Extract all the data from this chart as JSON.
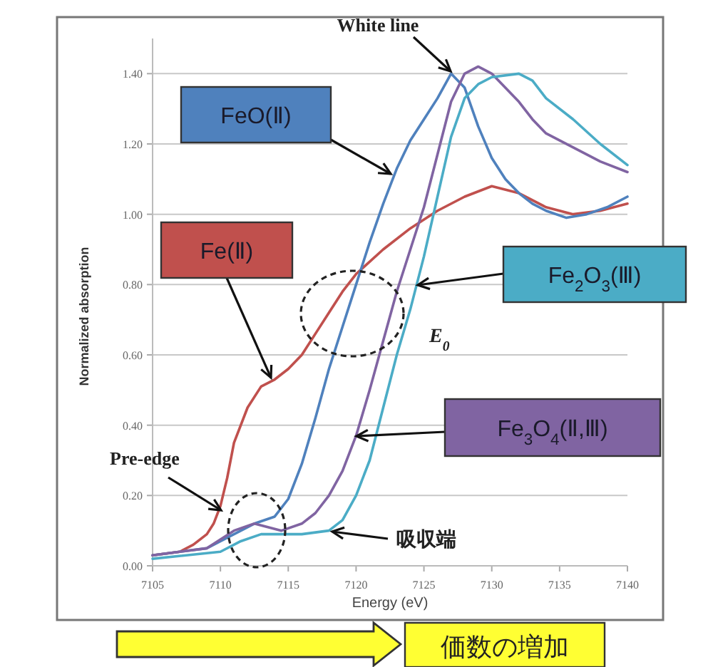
{
  "chart_data": {
    "type": "line",
    "xlabel": "Energy (eV)",
    "ylabel": "Normalized absorption",
    "xlim": [
      7105,
      7140
    ],
    "xticks": [
      7105,
      7110,
      7115,
      7120,
      7125,
      7130,
      7135,
      7140
    ],
    "ylim": [
      0,
      1.5
    ],
    "yticks": [
      {
        "value": 0,
        "label": "0.00"
      },
      {
        "value": 0.2,
        "label": "0.20"
      },
      {
        "value": 0.4,
        "label": "0.40"
      },
      {
        "value": 0.6,
        "label": "0.60"
      },
      {
        "value": 0.8,
        "label": "0.80"
      },
      {
        "value": 1.0,
        "label": "1.00"
      },
      {
        "value": 1.2,
        "label": "1.20"
      },
      {
        "value": 1.4,
        "label": "1.40"
      }
    ],
    "grid": "y",
    "marker": "none",
    "line_style": "solid",
    "series": [
      {
        "name": "Fe(Ⅱ)",
        "color": "#c0504d",
        "x": [
          7105,
          7107,
          7108,
          7109,
          7109.5,
          7110,
          7110.5,
          7111,
          7112,
          7113,
          7114,
          7115,
          7116,
          7117,
          7118,
          7119,
          7120,
          7122,
          7124,
          7126,
          7128,
          7130,
          7132,
          7134,
          7136,
          7138,
          7140
        ],
        "values": [
          0.03,
          0.04,
          0.06,
          0.09,
          0.12,
          0.17,
          0.25,
          0.35,
          0.45,
          0.51,
          0.53,
          0.56,
          0.6,
          0.66,
          0.72,
          0.78,
          0.83,
          0.9,
          0.96,
          1.01,
          1.05,
          1.08,
          1.06,
          1.02,
          1.0,
          1.01,
          1.03
        ]
      },
      {
        "name": "FeO(Ⅱ)",
        "color": "#4f81bd",
        "x": [
          7105,
          7109,
          7111,
          7112.5,
          7114,
          7115,
          7116,
          7117,
          7118,
          7119,
          7120,
          7121,
          7122,
          7123,
          7124,
          7125,
          7126,
          7127,
          7128,
          7129,
          7130,
          7131,
          7132,
          7133,
          7134,
          7135.5,
          7137,
          7138.5,
          7140
        ],
        "values": [
          0.03,
          0.05,
          0.09,
          0.12,
          0.14,
          0.19,
          0.29,
          0.42,
          0.56,
          0.68,
          0.8,
          0.92,
          1.03,
          1.13,
          1.21,
          1.27,
          1.33,
          1.4,
          1.36,
          1.25,
          1.16,
          1.1,
          1.06,
          1.03,
          1.01,
          0.99,
          1.0,
          1.02,
          1.05
        ]
      },
      {
        "name": "Fe$_{3}$O$_{4}$(Ⅱ,Ⅲ)",
        "color": "#8064a2",
        "x": [
          7105,
          7109,
          7111,
          7112.5,
          7113.5,
          7114.5,
          7116,
          7117,
          7118,
          7119,
          7120,
          7121,
          7122,
          7123,
          7124,
          7125,
          7126,
          7127,
          7128,
          7129,
          7130,
          7131,
          7132,
          7133,
          7134,
          7136,
          7138,
          7140
        ],
        "values": [
          0.03,
          0.05,
          0.1,
          0.12,
          0.11,
          0.1,
          0.12,
          0.15,
          0.2,
          0.27,
          0.37,
          0.5,
          0.64,
          0.78,
          0.9,
          1.02,
          1.17,
          1.32,
          1.4,
          1.42,
          1.4,
          1.36,
          1.32,
          1.27,
          1.23,
          1.19,
          1.15,
          1.12
        ]
      },
      {
        "name": "Fe$_{2}$O$_{3}$(Ⅲ)",
        "color": "#4bacc6",
        "x": [
          7105,
          7110,
          7111.5,
          7113,
          7114.5,
          7116,
          7118,
          7119,
          7120,
          7121,
          7122,
          7123,
          7124,
          7125,
          7126,
          7127,
          7128,
          7129,
          7130,
          7132,
          7133,
          7134,
          7136,
          7138,
          7140
        ],
        "values": [
          0.02,
          0.04,
          0.07,
          0.09,
          0.09,
          0.09,
          0.1,
          0.13,
          0.2,
          0.3,
          0.45,
          0.6,
          0.73,
          0.88,
          1.05,
          1.22,
          1.33,
          1.37,
          1.39,
          1.4,
          1.38,
          1.33,
          1.27,
          1.2,
          1.14
        ]
      }
    ],
    "annotations": [
      "White line",
      "Pre-edge",
      "E$_{0}$",
      "吸収端",
      "価数の増加"
    ]
  }
}
